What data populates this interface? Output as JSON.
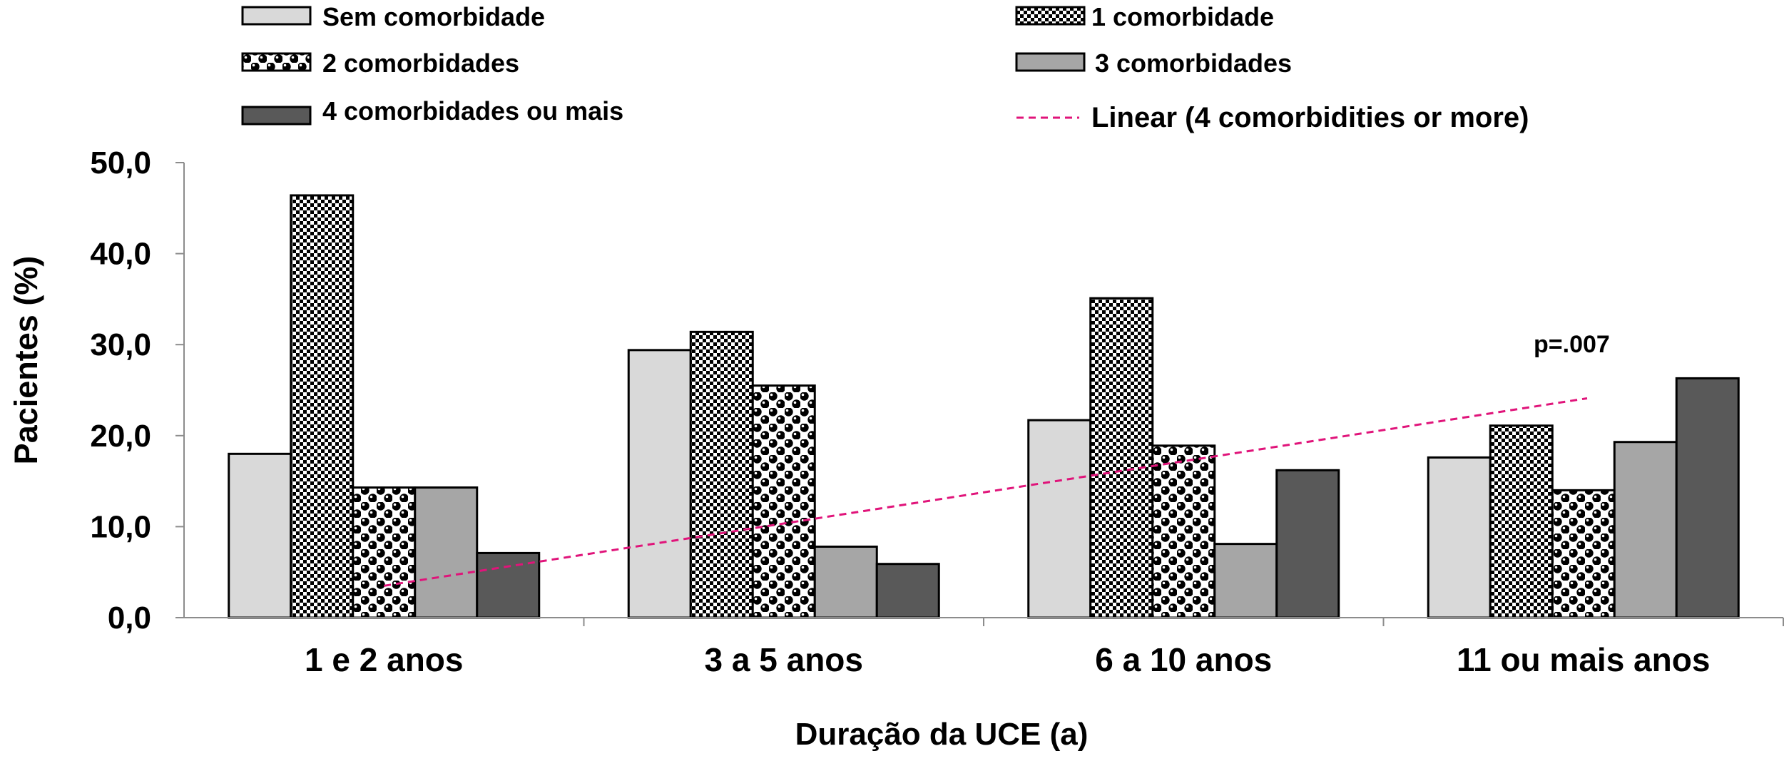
{
  "chart_data": {
    "type": "bar",
    "categories": [
      "1 e 2 anos",
      "3 a 5 anos",
      "6 a 10 anos",
      "11 ou mais anos"
    ],
    "series": [
      {
        "name": "Sem comorbidade",
        "values": [
          18.0,
          29.4,
          21.7,
          17.6
        ],
        "fill": "solid-light",
        "color": "#d9d9d9"
      },
      {
        "name": "1 comorbidade",
        "values": [
          46.4,
          31.4,
          35.1,
          21.1
        ],
        "fill": "checker",
        "color": "#000000"
      },
      {
        "name": "2 comorbidades",
        "values": [
          14.3,
          25.5,
          18.9,
          14.0
        ],
        "fill": "dots",
        "color": "#000000"
      },
      {
        "name": "3 comorbidades",
        "values": [
          14.3,
          7.8,
          8.1,
          19.3
        ],
        "fill": "solid-mid",
        "color": "#a6a6a6"
      },
      {
        "name": "4 comorbidades ou mais",
        "values": [
          7.1,
          5.9,
          16.2,
          26.3
        ],
        "fill": "solid-dark",
        "color": "#595959"
      }
    ],
    "trendline": {
      "name": "Linear (4 comorbidities or more)",
      "type": "linear",
      "start": 3.5,
      "end": 24.1,
      "color": "#e0147a",
      "annotation": "p=.007"
    },
    "ylabel": "Pacientes (%)",
    "xlabel": "Duração da UCE (a)",
    "ylim": [
      0,
      50
    ],
    "yticks": [
      "50,0",
      "40,0",
      "30,0",
      "20,0",
      "10,0",
      "0,0"
    ],
    "ytick_values": [
      50,
      40,
      30,
      20,
      10,
      0
    ],
    "grid": false,
    "legend_position": "top"
  }
}
